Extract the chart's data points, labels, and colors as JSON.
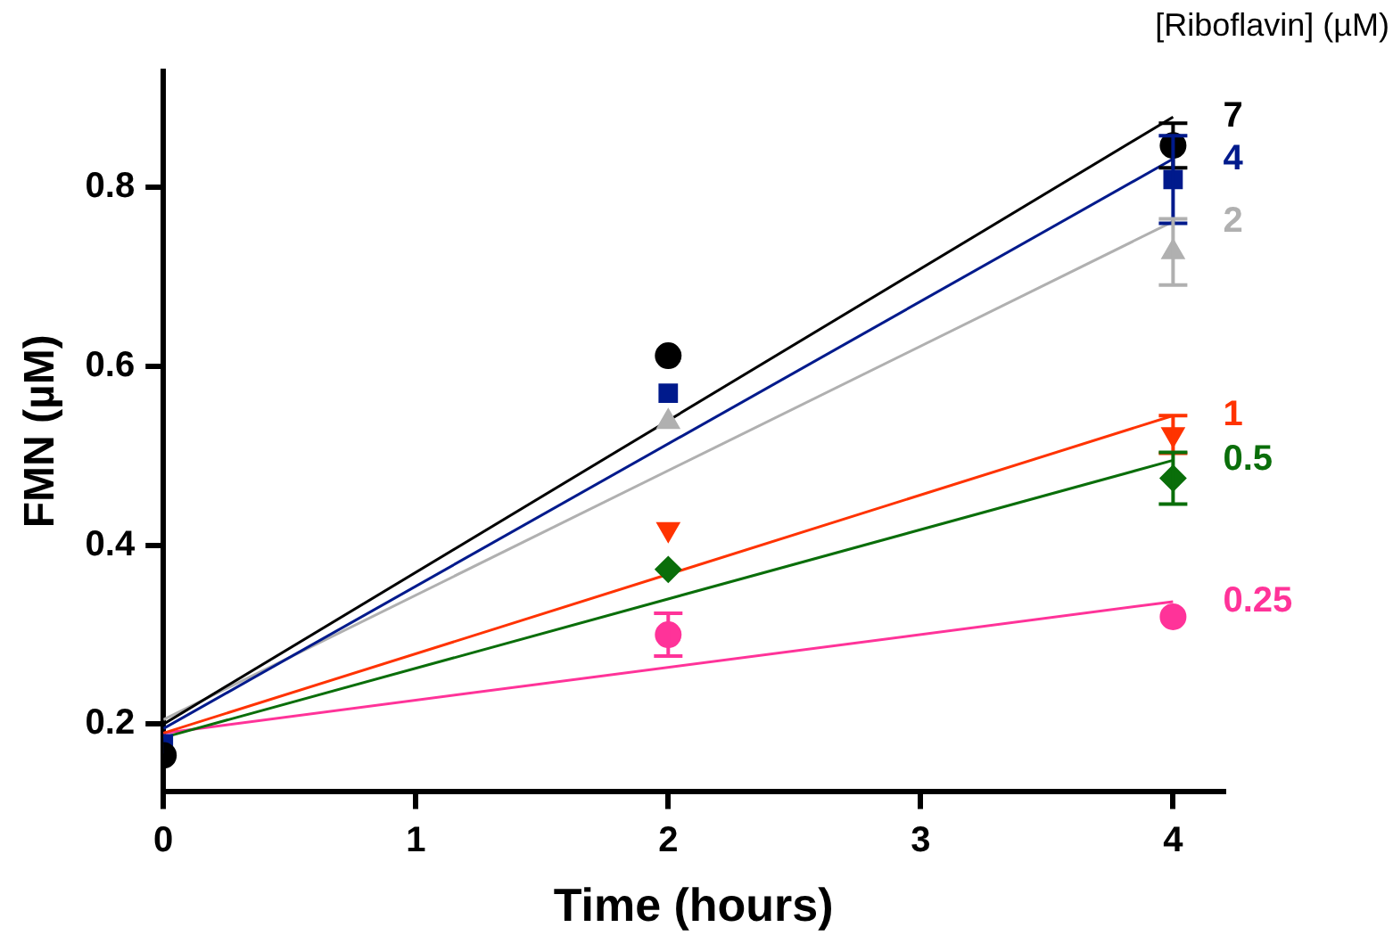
{
  "chart_data": {
    "type": "scatter",
    "xlabel": "Time (hours)",
    "ylabel": "FMN (µM)",
    "legend_title": "[Riboflavin] (µM)",
    "xlim": [
      0,
      4.2
    ],
    "xticks": [
      0,
      1,
      2,
      3,
      4
    ],
    "ylim": [
      0.125,
      0.93
    ],
    "yticks": [
      0.2,
      0.4,
      0.6,
      0.8
    ],
    "grid": false,
    "legend": false,
    "series": [
      {
        "type": "scatter",
        "name": "7",
        "color": "#000000",
        "marker": "circle",
        "x": [
          0,
          2,
          4
        ],
        "values": [
          0.165,
          0.612,
          0.847
        ],
        "errors": [
          null,
          null,
          0.025
        ]
      },
      {
        "type": "scatter",
        "name": "4",
        "color": "#001a8c",
        "marker": "square",
        "x": [
          0,
          2,
          4
        ],
        "values": [
          0.178,
          0.57,
          0.809
        ],
        "errors": [
          null,
          null,
          0.049
        ]
      },
      {
        "type": "scatter",
        "name": "2",
        "color": "#b0b0b0",
        "marker": "triangle",
        "x": [
          2,
          4
        ],
        "values": [
          0.538,
          0.728
        ],
        "errors": [
          null,
          0.037
        ]
      },
      {
        "type": "scatter",
        "name": "1",
        "color": "#ff3300",
        "marker": "triangle-down",
        "x": [
          2,
          4
        ],
        "values": [
          0.418,
          0.524
        ],
        "errors": [
          null,
          0.021
        ]
      },
      {
        "type": "scatter",
        "name": "0.5",
        "color": "#0a6e0a",
        "marker": "diamond",
        "x": [
          2,
          4
        ],
        "values": [
          0.373,
          0.475
        ],
        "errors": [
          null,
          0.029
        ]
      },
      {
        "type": "scatter",
        "name": "0.25",
        "color": "#ff3399",
        "marker": "circle",
        "x": [
          2,
          4
        ],
        "values": [
          0.3,
          0.32
        ],
        "errors": [
          0.024,
          null
        ]
      },
      {
        "type": "line",
        "color": "#000000",
        "x": [
          0,
          4
        ],
        "values": [
          0.2,
          0.879
        ]
      },
      {
        "type": "line",
        "color": "#001a8c",
        "x": [
          0,
          4
        ],
        "values": [
          0.195,
          0.832
        ]
      },
      {
        "type": "line",
        "color": "#b0b0b0",
        "x": [
          0,
          4
        ],
        "values": [
          0.205,
          0.762
        ]
      },
      {
        "type": "line",
        "color": "#ff3300",
        "x": [
          0,
          4
        ],
        "values": [
          0.19,
          0.545
        ]
      },
      {
        "type": "line",
        "color": "#0a6e0a",
        "x": [
          0,
          4
        ],
        "values": [
          0.185,
          0.495
        ]
      },
      {
        "type": "line",
        "color": "#ff3399",
        "x": [
          0,
          4
        ],
        "values": [
          0.19,
          0.337
        ]
      }
    ]
  }
}
